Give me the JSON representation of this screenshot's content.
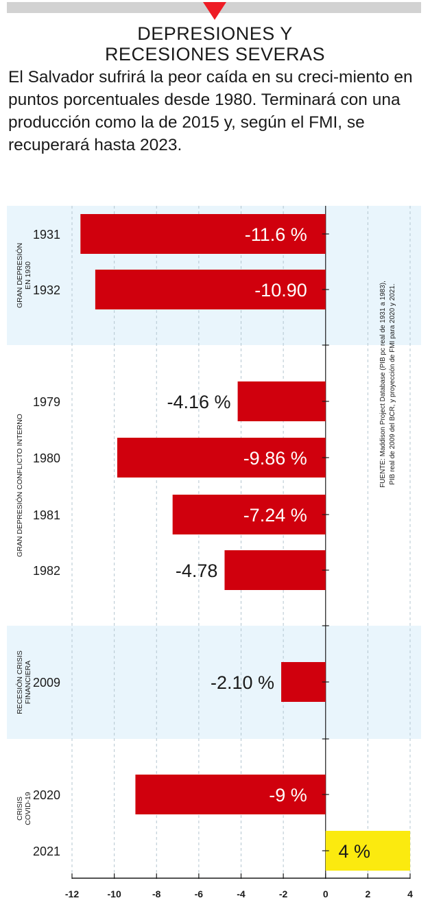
{
  "colors": {
    "bar": "#d0000d",
    "highlight": "#fbea0f",
    "band": "#e9f5fc",
    "topbar": "#d2d2d2"
  },
  "header": {
    "title_line1": "DEPRESIONES Y",
    "title_line2": "RECESIONES SEVERAS",
    "intro": "El Salvador sufrirá la peor caída en su creci-miento en puntos porcentuales desde 1980. Terminará con una producción como la de 2015 y, según el FMI, se recuperará hasta 2023."
  },
  "chart_data": {
    "type": "bar",
    "orientation": "horizontal",
    "categories": [
      "1931",
      "1932",
      "1979",
      "1980",
      "1981",
      "1982",
      "2009",
      "2020",
      "2021"
    ],
    "values": [
      -11.6,
      -10.9,
      -4.16,
      -9.86,
      -7.24,
      -4.78,
      -2.1,
      -9,
      4
    ],
    "data_labels": [
      "-11.6 %",
      "-10.90",
      "-4.16 %",
      "-9.86 %",
      "-7.24 %",
      "-4.78",
      "-2.10 %",
      "-9 %",
      "4 %"
    ],
    "xlim": [
      -12,
      4
    ],
    "x_ticks": [
      -12,
      -10,
      -8,
      -6,
      -4,
      -2,
      0,
      2,
      4
    ],
    "x_tick_labels": [
      "-12",
      "-10",
      "-8",
      "-6",
      "-4",
      "-2",
      "0",
      "2",
      "4"
    ],
    "gridlines": "vertical",
    "groups": [
      {
        "lines": [
          "GRAN DEPRESIÓN",
          "EN 1930"
        ],
        "shaded": true
      },
      {
        "lines": [
          "GRAN DEPRESIÓN CONFLICTO INTERNO"
        ],
        "shaded": false
      },
      {
        "lines": [
          "RECESIÓN CRISIS",
          "FINANCIERA"
        ],
        "shaded": true
      },
      {
        "lines": [
          "CRISIS",
          "COVID-19"
        ],
        "shaded": false
      }
    ],
    "source_lines": [
      "FUENTE: Maddison Project Database (PIB pc real de 1931 a 1983),",
      "PIB real de 2009 del BCR, y proyección de FMI para 2020 y 2021."
    ]
  }
}
